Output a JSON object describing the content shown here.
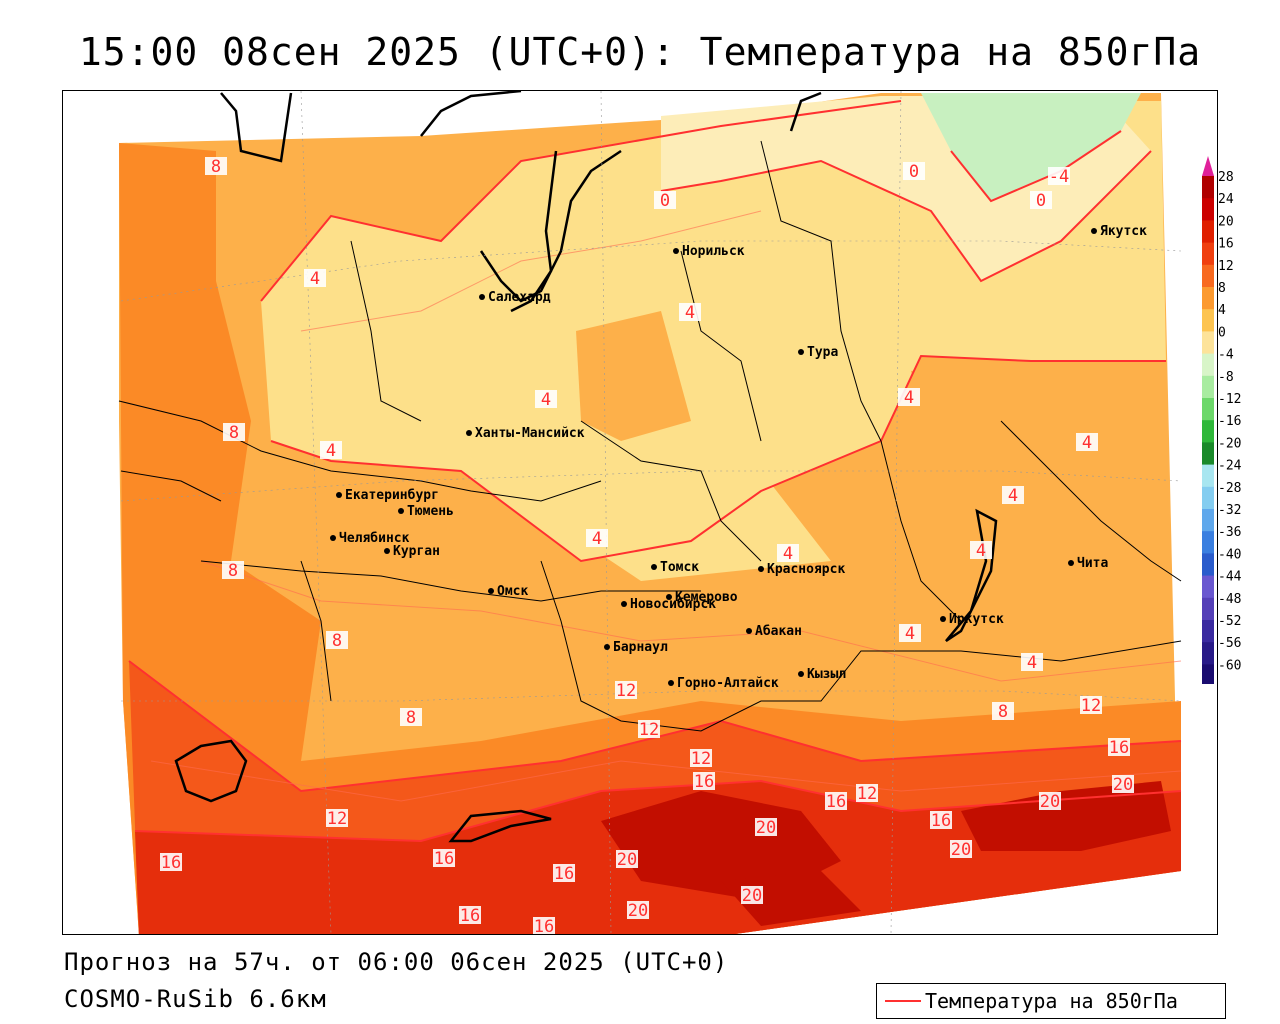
{
  "title": "15:00 08сен 2025 (UTC+0): Температура на 850гПа",
  "footer": {
    "forecast": "Прогноз на 57ч. от 06:00 06сен 2025 (UTC+0)",
    "model": "COSMO-RuSib 6.6км"
  },
  "legend": {
    "label": "Температура на 850гПа",
    "color": "#ff3030"
  },
  "colorbar": {
    "levels": [
      "28",
      "24",
      "20",
      "16",
      "12",
      "8",
      "4",
      "0",
      "-4",
      "-8",
      "-12",
      "-16",
      "-20",
      "-24",
      "-28",
      "-32",
      "-36",
      "-40",
      "-44",
      "-48",
      "-52",
      "-56",
      "-60"
    ],
    "colors": [
      "#b00000",
      "#cc0000",
      "#e02000",
      "#f04010",
      "#f86a20",
      "#fc9a30",
      "#fdc450",
      "#fde39a",
      "#d8f5c8",
      "#a8eca0",
      "#6cd86a",
      "#2fb83a",
      "#1a8a2a",
      "#a8e6f0",
      "#84cdf0",
      "#5fa8ec",
      "#3a7fe0",
      "#2a5ccc",
      "#6a58d0",
      "#5540b8",
      "#3a2aa0",
      "#281a88",
      "#1a0c70"
    ],
    "top_arrow_color": "#e0209a",
    "bottom_arrow_color": "#8a30c8"
  },
  "cities": [
    {
      "name": "Норильск"
    },
    {
      "name": "Якутск"
    },
    {
      "name": "Салехард"
    },
    {
      "name": "Тура"
    },
    {
      "name": "Ханты-Мансийск"
    },
    {
      "name": "Екатеринбург"
    },
    {
      "name": "Тюмень"
    },
    {
      "name": "Челябинск"
    },
    {
      "name": "Курган"
    },
    {
      "name": "Омск"
    },
    {
      "name": "Новосибирск"
    },
    {
      "name": "Томск"
    },
    {
      "name": "Красноярск"
    },
    {
      "name": "Кемерово"
    },
    {
      "name": "Барнаул"
    },
    {
      "name": "Абакан"
    },
    {
      "name": "Горно-Алтайск"
    },
    {
      "name": "Кызыл"
    },
    {
      "name": "Иркутск"
    },
    {
      "name": "Чита"
    }
  ],
  "isotherm_labels": [
    "0",
    "0",
    "0",
    "-4",
    "4",
    "4",
    "4",
    "4",
    "4",
    "4",
    "4",
    "4",
    "4",
    "4",
    "4",
    "4",
    "8",
    "8",
    "8",
    "8",
    "8",
    "8",
    "12",
    "12",
    "12",
    "12",
    "12",
    "12",
    "16",
    "16",
    "16",
    "16",
    "16",
    "16",
    "16",
    "16",
    "16",
    "20",
    "20",
    "20",
    "20",
    "20",
    "20",
    "20"
  ]
}
